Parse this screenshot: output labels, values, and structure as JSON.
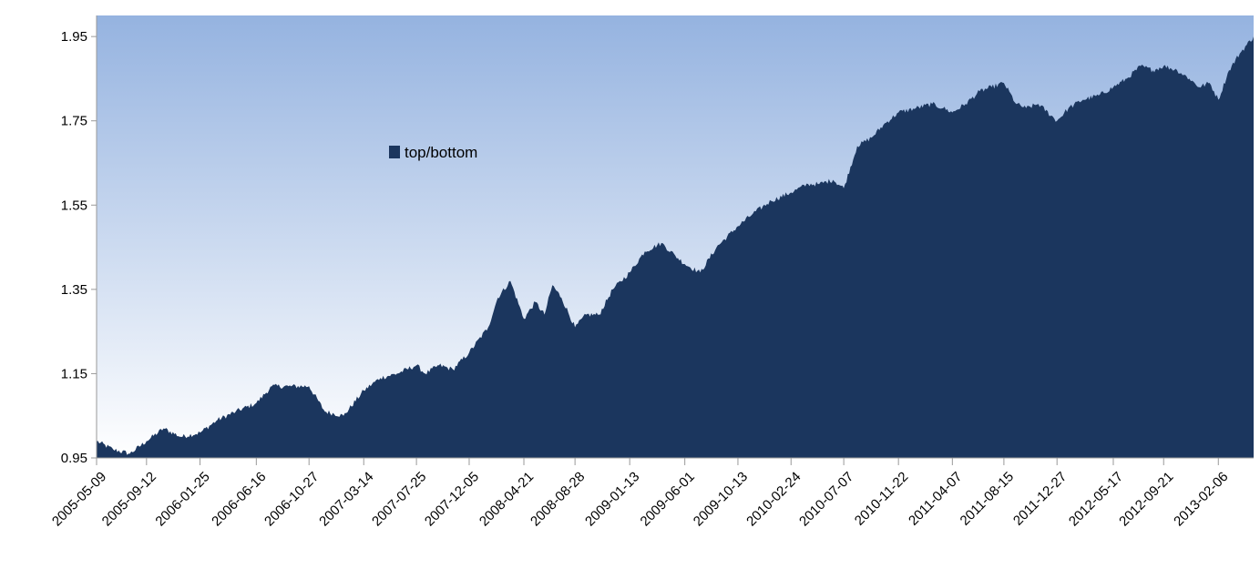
{
  "chart_data": {
    "type": "area",
    "title": "",
    "xlabel": "",
    "ylabel": "",
    "ylim": [
      0.95,
      2.0
    ],
    "y_ticks": [
      0.95,
      1.15,
      1.35,
      1.55,
      1.75,
      1.95
    ],
    "y_tick_labels": [
      "0.95",
      "1.15",
      "1.35",
      "1.55",
      "1.75",
      "1.95"
    ],
    "x_tick_labels": [
      "2005-05-09",
      "2005-09-12",
      "2006-01-25",
      "2006-06-16",
      "2006-10-27",
      "2007-03-14",
      "2007-07-25",
      "2007-12-05",
      "2008-04-21",
      "2008-08-28",
      "2009-01-13",
      "2009-06-01",
      "2009-10-13",
      "2010-02-24",
      "2010-07-07",
      "2010-11-22",
      "2011-04-07",
      "2011-08-15",
      "2011-12-27",
      "2012-05-17",
      "2012-09-21",
      "2013-02-06"
    ],
    "legend": {
      "position": "top-left",
      "entries": [
        "top/bottom"
      ]
    },
    "grid": false,
    "colors": {
      "series": "#1b365e",
      "background_top": "#95b3e0",
      "background_bottom": "#ffffff",
      "axis": "#999999"
    },
    "series": [
      {
        "name": "top/bottom",
        "x": [
          "2005-05-09",
          "2005-06-20",
          "2005-08-01",
          "2005-09-12",
          "2005-10-25",
          "2005-12-08",
          "2006-01-25",
          "2006-03-10",
          "2006-04-25",
          "2006-06-16",
          "2006-07-25",
          "2006-09-05",
          "2006-10-27",
          "2006-12-06",
          "2007-01-22",
          "2007-03-14",
          "2007-04-25",
          "2007-06-06",
          "2007-07-25",
          "2007-08-16",
          "2007-09-20",
          "2007-10-25",
          "2007-12-05",
          "2008-01-22",
          "2008-02-15",
          "2008-03-18",
          "2008-04-21",
          "2008-05-20",
          "2008-06-12",
          "2008-07-02",
          "2008-07-25",
          "2008-08-28",
          "2008-09-25",
          "2008-10-28",
          "2008-12-01",
          "2009-01-13",
          "2009-02-20",
          "2009-04-03",
          "2009-05-08",
          "2009-06-01",
          "2009-07-10",
          "2009-08-20",
          "2009-10-13",
          "2009-11-20",
          "2010-01-05",
          "2010-02-24",
          "2010-04-08",
          "2010-05-06",
          "2010-06-10",
          "2010-07-07",
          "2010-08-10",
          "2010-09-15",
          "2010-10-15",
          "2010-11-22",
          "2011-01-05",
          "2011-02-15",
          "2011-03-15",
          "2011-04-07",
          "2011-05-10",
          "2011-06-15",
          "2011-07-15",
          "2011-08-15",
          "2011-09-15",
          "2011-10-10",
          "2011-11-10",
          "2011-12-27",
          "2012-01-25",
          "2012-03-01",
          "2012-04-10",
          "2012-05-17",
          "2012-06-20",
          "2012-07-25",
          "2012-08-25",
          "2012-09-21",
          "2012-10-25",
          "2012-11-25",
          "2012-12-20",
          "2013-01-15",
          "2013-02-06",
          "2013-03-05",
          "2013-04-01",
          "2013-05-06"
        ],
        "values": [
          0.99,
          0.97,
          0.96,
          0.99,
          1.02,
          1.0,
          1.01,
          1.04,
          1.06,
          1.08,
          1.12,
          1.12,
          1.12,
          1.06,
          1.05,
          1.11,
          1.14,
          1.15,
          1.17,
          1.15,
          1.17,
          1.16,
          1.2,
          1.26,
          1.33,
          1.37,
          1.28,
          1.32,
          1.29,
          1.36,
          1.33,
          1.26,
          1.29,
          1.29,
          1.35,
          1.39,
          1.44,
          1.46,
          1.43,
          1.41,
          1.39,
          1.45,
          1.5,
          1.53,
          1.56,
          1.58,
          1.6,
          1.6,
          1.61,
          1.59,
          1.69,
          1.71,
          1.74,
          1.77,
          1.78,
          1.79,
          1.78,
          1.77,
          1.79,
          1.82,
          1.83,
          1.84,
          1.79,
          1.78,
          1.79,
          1.75,
          1.78,
          1.8,
          1.81,
          1.83,
          1.85,
          1.88,
          1.87,
          1.88,
          1.87,
          1.85,
          1.83,
          1.84,
          1.8,
          1.87,
          1.91,
          1.95
        ]
      }
    ]
  }
}
